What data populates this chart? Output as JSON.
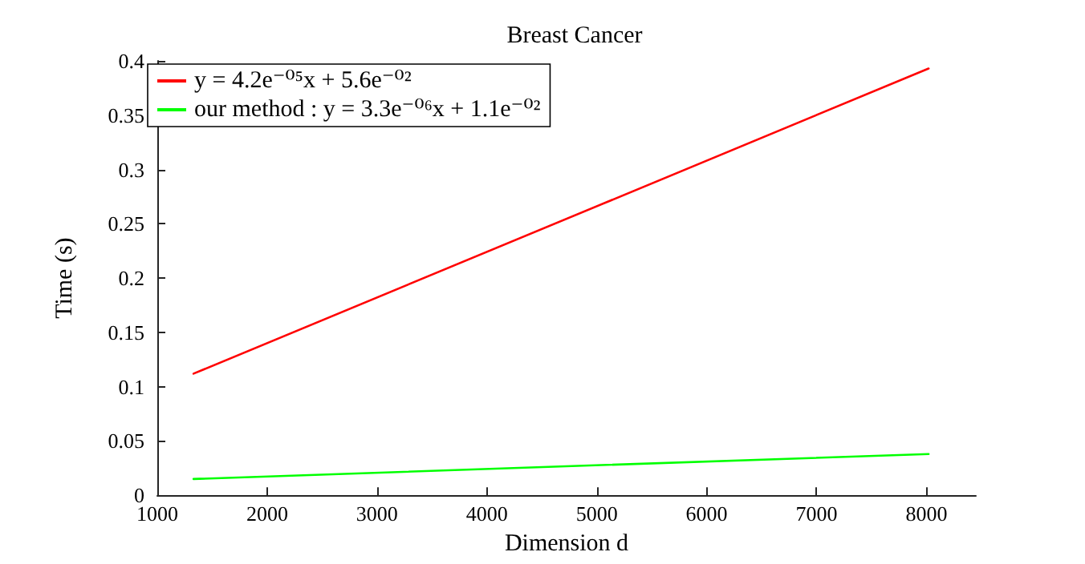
{
  "chart_data": {
    "type": "line",
    "title": "Breast Cancer",
    "xlabel": "Dimension d",
    "ylabel": "Time (s)",
    "x": [
      1330,
      8020
    ],
    "series": [
      {
        "name": "y = 4.2e⁻⁰⁵x + 5.6e⁻⁰²",
        "color": "#ff0000",
        "values": [
          0.112,
          0.393
        ]
      },
      {
        "name": "our method : y = 3.3e⁻⁰⁶x + 1.1e⁻⁰²",
        "color": "#00ff00",
        "values": [
          0.015,
          0.038
        ]
      }
    ],
    "xlim": [
      1000,
      8450
    ],
    "xticks": [
      1000,
      2000,
      3000,
      4000,
      5000,
      6000,
      7000,
      8000
    ],
    "ylim": [
      0,
      0.4
    ],
    "yticks": [
      0,
      0.05,
      0.1,
      0.15,
      0.2,
      0.25,
      0.3,
      0.35,
      0.4
    ],
    "grid": false,
    "legend": "top left",
    "marker": "none",
    "line_style": "solid"
  }
}
